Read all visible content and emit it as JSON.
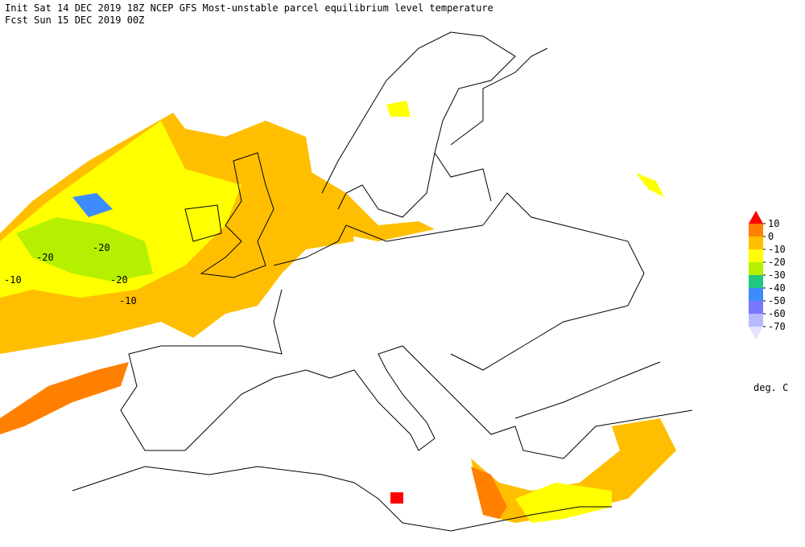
{
  "header": {
    "line1": "Init  Sat 14 DEC 2019 18Z  NCEP GFS Most-unstable parcel equilibrium level temperature",
    "line2": "Fcst Sun 15 DEC 2019 00Z"
  },
  "map": {
    "contour_labels": [
      "-20",
      "-20",
      "-20",
      "-10",
      "-10"
    ]
  },
  "legend": {
    "levels": [
      10,
      0,
      -10,
      -20,
      -30,
      -40,
      -50,
      -60,
      -70
    ],
    "colors": [
      "#ff0000",
      "#ff8000",
      "#ffbf00",
      "#ffff00",
      "#b4f000",
      "#20c880",
      "#3c8cff",
      "#7878ff",
      "#b8b8ff",
      "#e4e4ff"
    ],
    "unit": "deg. C"
  }
}
